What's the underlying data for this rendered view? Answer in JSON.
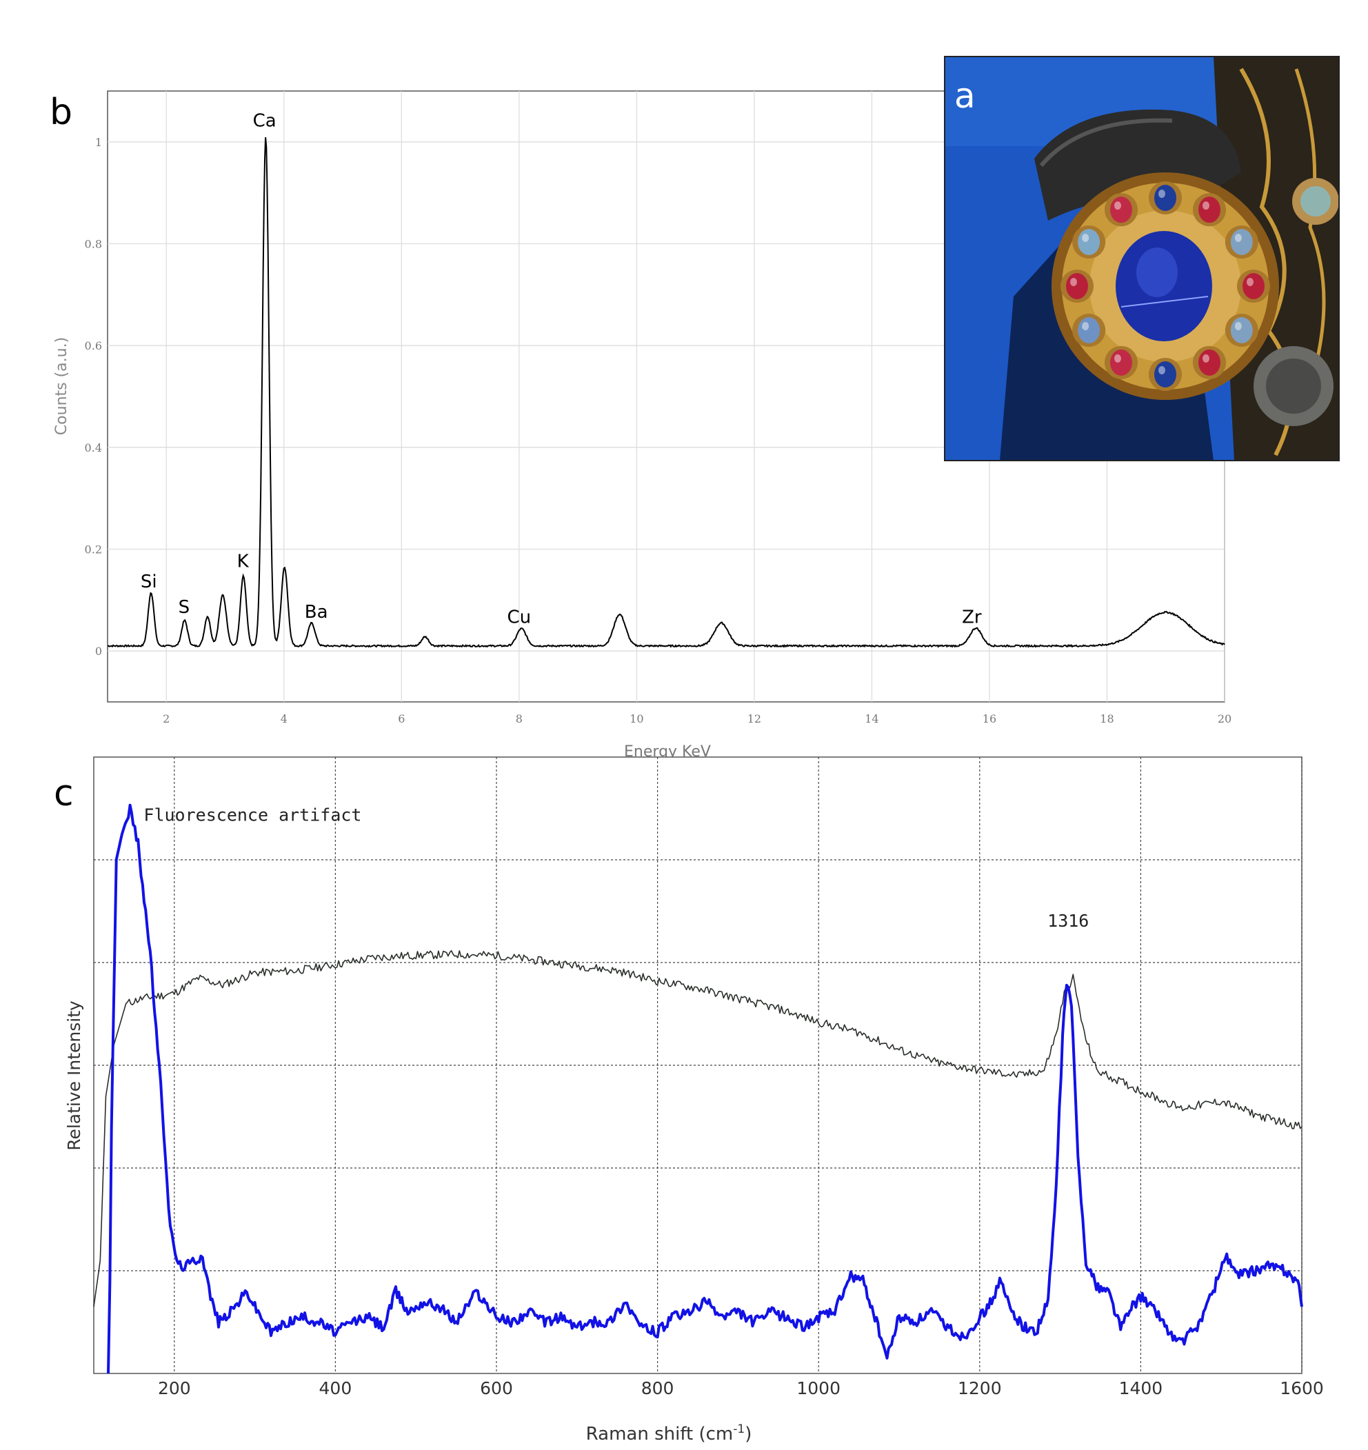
{
  "panels": {
    "a": {
      "label": "a"
    },
    "b": {
      "label": "b"
    },
    "c": {
      "label": "c"
    }
  },
  "photo": {
    "description_icon": "jewelled-gold-rosette-photo",
    "colors": {
      "background": "#1c57c4",
      "gold": "#c99a3a",
      "center_gem": "#1a2fa8"
    }
  },
  "chart_data": [
    {
      "type": "line",
      "panel": "b",
      "xlabel": "Energy KeV",
      "ylabel": "Counts (a.u.)",
      "xlim": [
        1,
        20
      ],
      "ylim": [
        -0.1,
        1.1
      ],
      "xticks": [
        2,
        4,
        6,
        8,
        10,
        12,
        14,
        16,
        18,
        20
      ],
      "xtick_labels": [
        "2",
        "4",
        "6",
        "8",
        "10",
        "12",
        "14",
        "16",
        "18",
        "20"
      ],
      "yticks": [
        0,
        0.2,
        0.4,
        0.6,
        0.8,
        1
      ],
      "ytick_labels": [
        "0",
        "0.2",
        "0.4",
        "0.6",
        "0.8",
        "1"
      ],
      "grid": true,
      "baseline": 0.01,
      "series": [
        {
          "color": "#000000",
          "peaks": [
            {
              "x": 1.74,
              "y": 0.105,
              "w": 0.05
            },
            {
              "x": 2.31,
              "y": 0.05,
              "w": 0.05
            },
            {
              "x": 2.7,
              "y": 0.058,
              "w": 0.05
            },
            {
              "x": 2.96,
              "y": 0.1,
              "w": 0.06
            },
            {
              "x": 3.31,
              "y": 0.137,
              "w": 0.05
            },
            {
              "x": 3.69,
              "y": 1.0,
              "w": 0.055
            },
            {
              "x": 4.01,
              "y": 0.155,
              "w": 0.055
            },
            {
              "x": 4.47,
              "y": 0.045,
              "w": 0.06
            },
            {
              "x": 6.4,
              "y": 0.018,
              "w": 0.06
            },
            {
              "x": 8.04,
              "y": 0.034,
              "w": 0.08
            },
            {
              "x": 9.71,
              "y": 0.062,
              "w": 0.1
            },
            {
              "x": 11.44,
              "y": 0.045,
              "w": 0.12
            },
            {
              "x": 15.77,
              "y": 0.035,
              "w": 0.1
            },
            {
              "x": 19.0,
              "y": 0.066,
              "w": 0.4
            }
          ]
        }
      ],
      "annotations": [
        {
          "text": "Si",
          "x": 1.7,
          "y": 0.125
        },
        {
          "text": "S",
          "x": 2.3,
          "y": 0.075
        },
        {
          "text": "K",
          "x": 3.3,
          "y": 0.165
        },
        {
          "text": "Ca",
          "x": 3.67,
          "y": 1.03
        },
        {
          "text": "Ba",
          "x": 4.55,
          "y": 0.065
        },
        {
          "text": "Cu",
          "x": 8.0,
          "y": 0.055
        },
        {
          "text": "Zr",
          "x": 15.7,
          "y": 0.055
        }
      ]
    },
    {
      "type": "line",
      "panel": "c",
      "xlabel": "Raman shift (cm",
      "xlabel_sup": "-1",
      "xlabel_suffix": ")",
      "ylabel": "Relative Intensity",
      "xlim": [
        100,
        1600
      ],
      "ylim": [
        0,
        6
      ],
      "xticks": [
        200,
        400,
        600,
        800,
        1000,
        1200,
        1400,
        1600
      ],
      "xtick_labels": [
        "200",
        "400",
        "600",
        "800",
        "1000",
        "1200",
        "1400",
        "1600"
      ],
      "grid": true,
      "series": [
        {
          "color": "#2a2f2a",
          "stroke": 1.6,
          "points": [
            [
              100,
              0.65
            ],
            [
              108,
              1.1
            ],
            [
              115,
              2.7
            ],
            [
              125,
              3.2
            ],
            [
              140,
              3.6
            ],
            [
              160,
              3.65
            ],
            [
              200,
              3.7
            ],
            [
              230,
              3.85
            ],
            [
              260,
              3.78
            ],
            [
              300,
              3.9
            ],
            [
              350,
              3.92
            ],
            [
              400,
              3.98
            ],
            [
              450,
              4.05
            ],
            [
              500,
              4.07
            ],
            [
              550,
              4.08
            ],
            [
              600,
              4.07
            ],
            [
              650,
              4.02
            ],
            [
              700,
              3.97
            ],
            [
              750,
              3.92
            ],
            [
              800,
              3.82
            ],
            [
              850,
              3.75
            ],
            [
              900,
              3.65
            ],
            [
              950,
              3.55
            ],
            [
              1000,
              3.42
            ],
            [
              1050,
              3.32
            ],
            [
              1100,
              3.15
            ],
            [
              1150,
              3.02
            ],
            [
              1200,
              2.95
            ],
            [
              1250,
              2.9
            ],
            [
              1280,
              2.95
            ],
            [
              1295,
              3.3
            ],
            [
              1305,
              3.7
            ],
            [
              1316,
              3.85
            ],
            [
              1330,
              3.3
            ],
            [
              1345,
              2.95
            ],
            [
              1400,
              2.75
            ],
            [
              1450,
              2.58
            ],
            [
              1500,
              2.65
            ],
            [
              1550,
              2.5
            ],
            [
              1600,
              2.4
            ]
          ]
        },
        {
          "color": "#1212e6",
          "stroke": 4,
          "points": [
            [
              118,
              -0.6
            ],
            [
              122,
              2.4
            ],
            [
              128,
              5.0
            ],
            [
              135,
              5.25
            ],
            [
              145,
              5.5
            ],
            [
              155,
              5.15
            ],
            [
              170,
              4.1
            ],
            [
              185,
              2.6
            ],
            [
              195,
              1.4
            ],
            [
              205,
              1.05
            ],
            [
              215,
              1.05
            ],
            [
              225,
              1.1
            ],
            [
              235,
              1.15
            ],
            [
              245,
              0.75
            ],
            [
              255,
              0.5
            ],
            [
              270,
              0.6
            ],
            [
              290,
              0.8
            ],
            [
              300,
              0.65
            ],
            [
              320,
              0.4
            ],
            [
              340,
              0.5
            ],
            [
              360,
              0.55
            ],
            [
              380,
              0.5
            ],
            [
              400,
              0.4
            ],
            [
              420,
              0.5
            ],
            [
              440,
              0.55
            ],
            [
              460,
              0.45
            ],
            [
              475,
              0.8
            ],
            [
              490,
              0.6
            ],
            [
              510,
              0.7
            ],
            [
              530,
              0.65
            ],
            [
              550,
              0.5
            ],
            [
              575,
              0.8
            ],
            [
              590,
              0.65
            ],
            [
              600,
              0.55
            ],
            [
              620,
              0.5
            ],
            [
              640,
              0.6
            ],
            [
              660,
              0.5
            ],
            [
              680,
              0.55
            ],
            [
              700,
              0.45
            ],
            [
              720,
              0.5
            ],
            [
              740,
              0.5
            ],
            [
              760,
              0.7
            ],
            [
              780,
              0.45
            ],
            [
              800,
              0.4
            ],
            [
              820,
              0.55
            ],
            [
              840,
              0.6
            ],
            [
              860,
              0.7
            ],
            [
              880,
              0.55
            ],
            [
              900,
              0.6
            ],
            [
              920,
              0.5
            ],
            [
              940,
              0.6
            ],
            [
              960,
              0.55
            ],
            [
              980,
              0.45
            ],
            [
              1000,
              0.55
            ],
            [
              1020,
              0.6
            ],
            [
              1040,
              0.95
            ],
            [
              1055,
              0.9
            ],
            [
              1070,
              0.55
            ],
            [
              1085,
              0.15
            ],
            [
              1100,
              0.55
            ],
            [
              1120,
              0.5
            ],
            [
              1140,
              0.6
            ],
            [
              1160,
              0.45
            ],
            [
              1180,
              0.35
            ],
            [
              1200,
              0.55
            ],
            [
              1215,
              0.7
            ],
            [
              1225,
              0.9
            ],
            [
              1240,
              0.6
            ],
            [
              1255,
              0.45
            ],
            [
              1270,
              0.4
            ],
            [
              1285,
              0.7
            ],
            [
              1295,
              1.8
            ],
            [
              1303,
              3.3
            ],
            [
              1308,
              3.8
            ],
            [
              1314,
              3.6
            ],
            [
              1322,
              2.1
            ],
            [
              1332,
              1.1
            ],
            [
              1345,
              0.85
            ],
            [
              1360,
              0.8
            ],
            [
              1375,
              0.45
            ],
            [
              1390,
              0.65
            ],
            [
              1400,
              0.75
            ],
            [
              1420,
              0.6
            ],
            [
              1440,
              0.35
            ],
            [
              1450,
              0.3
            ],
            [
              1470,
              0.45
            ],
            [
              1490,
              0.8
            ],
            [
              1505,
              1.15
            ],
            [
              1520,
              0.95
            ],
            [
              1540,
              1.0
            ],
            [
              1560,
              1.05
            ],
            [
              1580,
              1.0
            ],
            [
              1595,
              0.9
            ],
            [
              1600,
              0.65
            ]
          ]
        }
      ],
      "annotations": [
        {
          "text": "Fluorescence artifact",
          "x": 162,
          "y": 5.38
        },
        {
          "text": "1316",
          "x": 1310,
          "y": 4.35
        }
      ]
    }
  ]
}
